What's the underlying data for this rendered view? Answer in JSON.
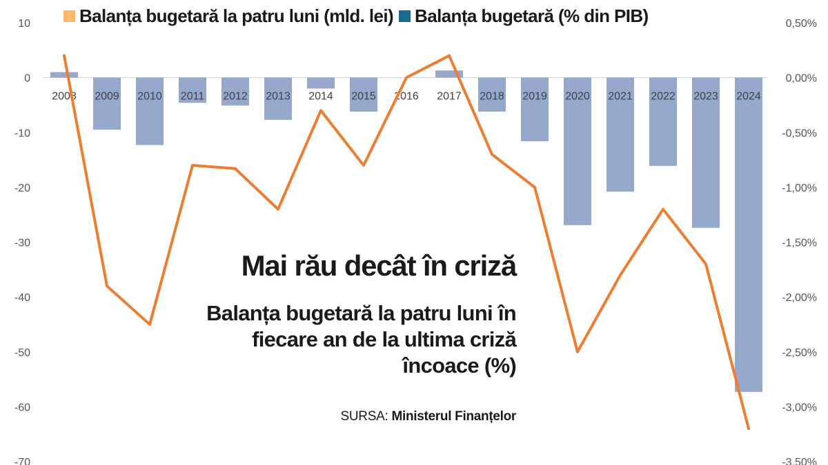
{
  "legend": {
    "bars_label": "Balanța bugetară la patru luni (mld. lei)",
    "bars_swatch_color": "#FDB96B",
    "line_label": "Balanța bugetară (% din PIB)",
    "line_swatch_color": "#1B6C8C"
  },
  "overlay": {
    "title": "Mai rău decât în criză",
    "subtitle": "Balanța bugetară la patru luni în fiecare an de la ultima criză încoace (%)",
    "source_prefix": "SURSA:",
    "source_name": "Ministerul Finanțelor"
  },
  "colors": {
    "bar": "#96A8CC",
    "line": "#EC7D31",
    "axis_text": "#555555",
    "year_text": "#404040",
    "zero_line": "#D0D0D0"
  },
  "chart_data": {
    "type": "bar",
    "categories": [
      "2008",
      "2009",
      "2010",
      "2011",
      "2012",
      "2013",
      "2014",
      "2015",
      "2016",
      "2017",
      "2018",
      "2019",
      "2020",
      "2021",
      "2022",
      "2023",
      "2024"
    ],
    "series": [
      {
        "name": "Balanța bugetară la patru luni (mld. lei)",
        "type": "bar",
        "axis": "left",
        "values": [
          1,
          -9.5,
          -12.3,
          -4.6,
          -5.1,
          -7.7,
          -2,
          -6.2,
          0,
          1.3,
          -6.2,
          -11.6,
          -26.9,
          -20.8,
          -16.1,
          -27.4,
          -57.3
        ]
      },
      {
        "name": "Balanța bugetară (% din PIB)",
        "type": "line",
        "axis": "right",
        "values": [
          0.2,
          -1.9,
          -2.25,
          -0.8,
          -0.83,
          -1.2,
          -0.3,
          -0.8,
          0.0,
          0.2,
          -0.7,
          -1.0,
          -2.5,
          -1.8,
          -1.2,
          -1.7,
          -3.2
        ]
      }
    ],
    "left_axis": {
      "ylim": [
        -70,
        10
      ],
      "ticks": [
        "10",
        "0",
        "-10",
        "-20",
        "-30",
        "-40",
        "-50",
        "-60",
        "-70"
      ]
    },
    "right_axis": {
      "ylim": [
        -3.5,
        0.5
      ],
      "ticks": [
        "0,50%",
        "0,00%",
        "-0,50%",
        "-1,00%",
        "-1,50%",
        "-2,00%",
        "-2,50%",
        "-3,00%",
        "-3,50%"
      ]
    },
    "grid": false,
    "legend_position": "top"
  }
}
